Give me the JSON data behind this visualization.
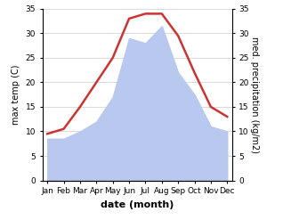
{
  "months": [
    "Jan",
    "Feb",
    "Mar",
    "Apr",
    "May",
    "Jun",
    "Jul",
    "Aug",
    "Sep",
    "Oct",
    "Nov",
    "Dec"
  ],
  "temperature": [
    9.5,
    10.5,
    15.0,
    20.0,
    25.0,
    33.0,
    34.0,
    34.0,
    29.5,
    22.0,
    15.0,
    13.0
  ],
  "precipitation": [
    8.5,
    8.5,
    10.0,
    12.0,
    17.0,
    29.0,
    28.0,
    31.5,
    22.0,
    17.5,
    11.0,
    10.0
  ],
  "temp_color": "#cc3333",
  "precip_color": "#b8c8ee",
  "ylim": [
    0,
    35
  ],
  "yticks": [
    0,
    5,
    10,
    15,
    20,
    25,
    30,
    35
  ],
  "ylabel_left": "max temp (C)",
  "ylabel_right": "med. precipitation (kg/m2)",
  "xlabel": "date (month)",
  "bg_color": "#ffffff",
  "grid_color": "#cccccc",
  "temp_linewidth": 1.8,
  "xlabel_fontsize": 8,
  "ylabel_fontsize": 7,
  "tick_fontsize": 6.5
}
